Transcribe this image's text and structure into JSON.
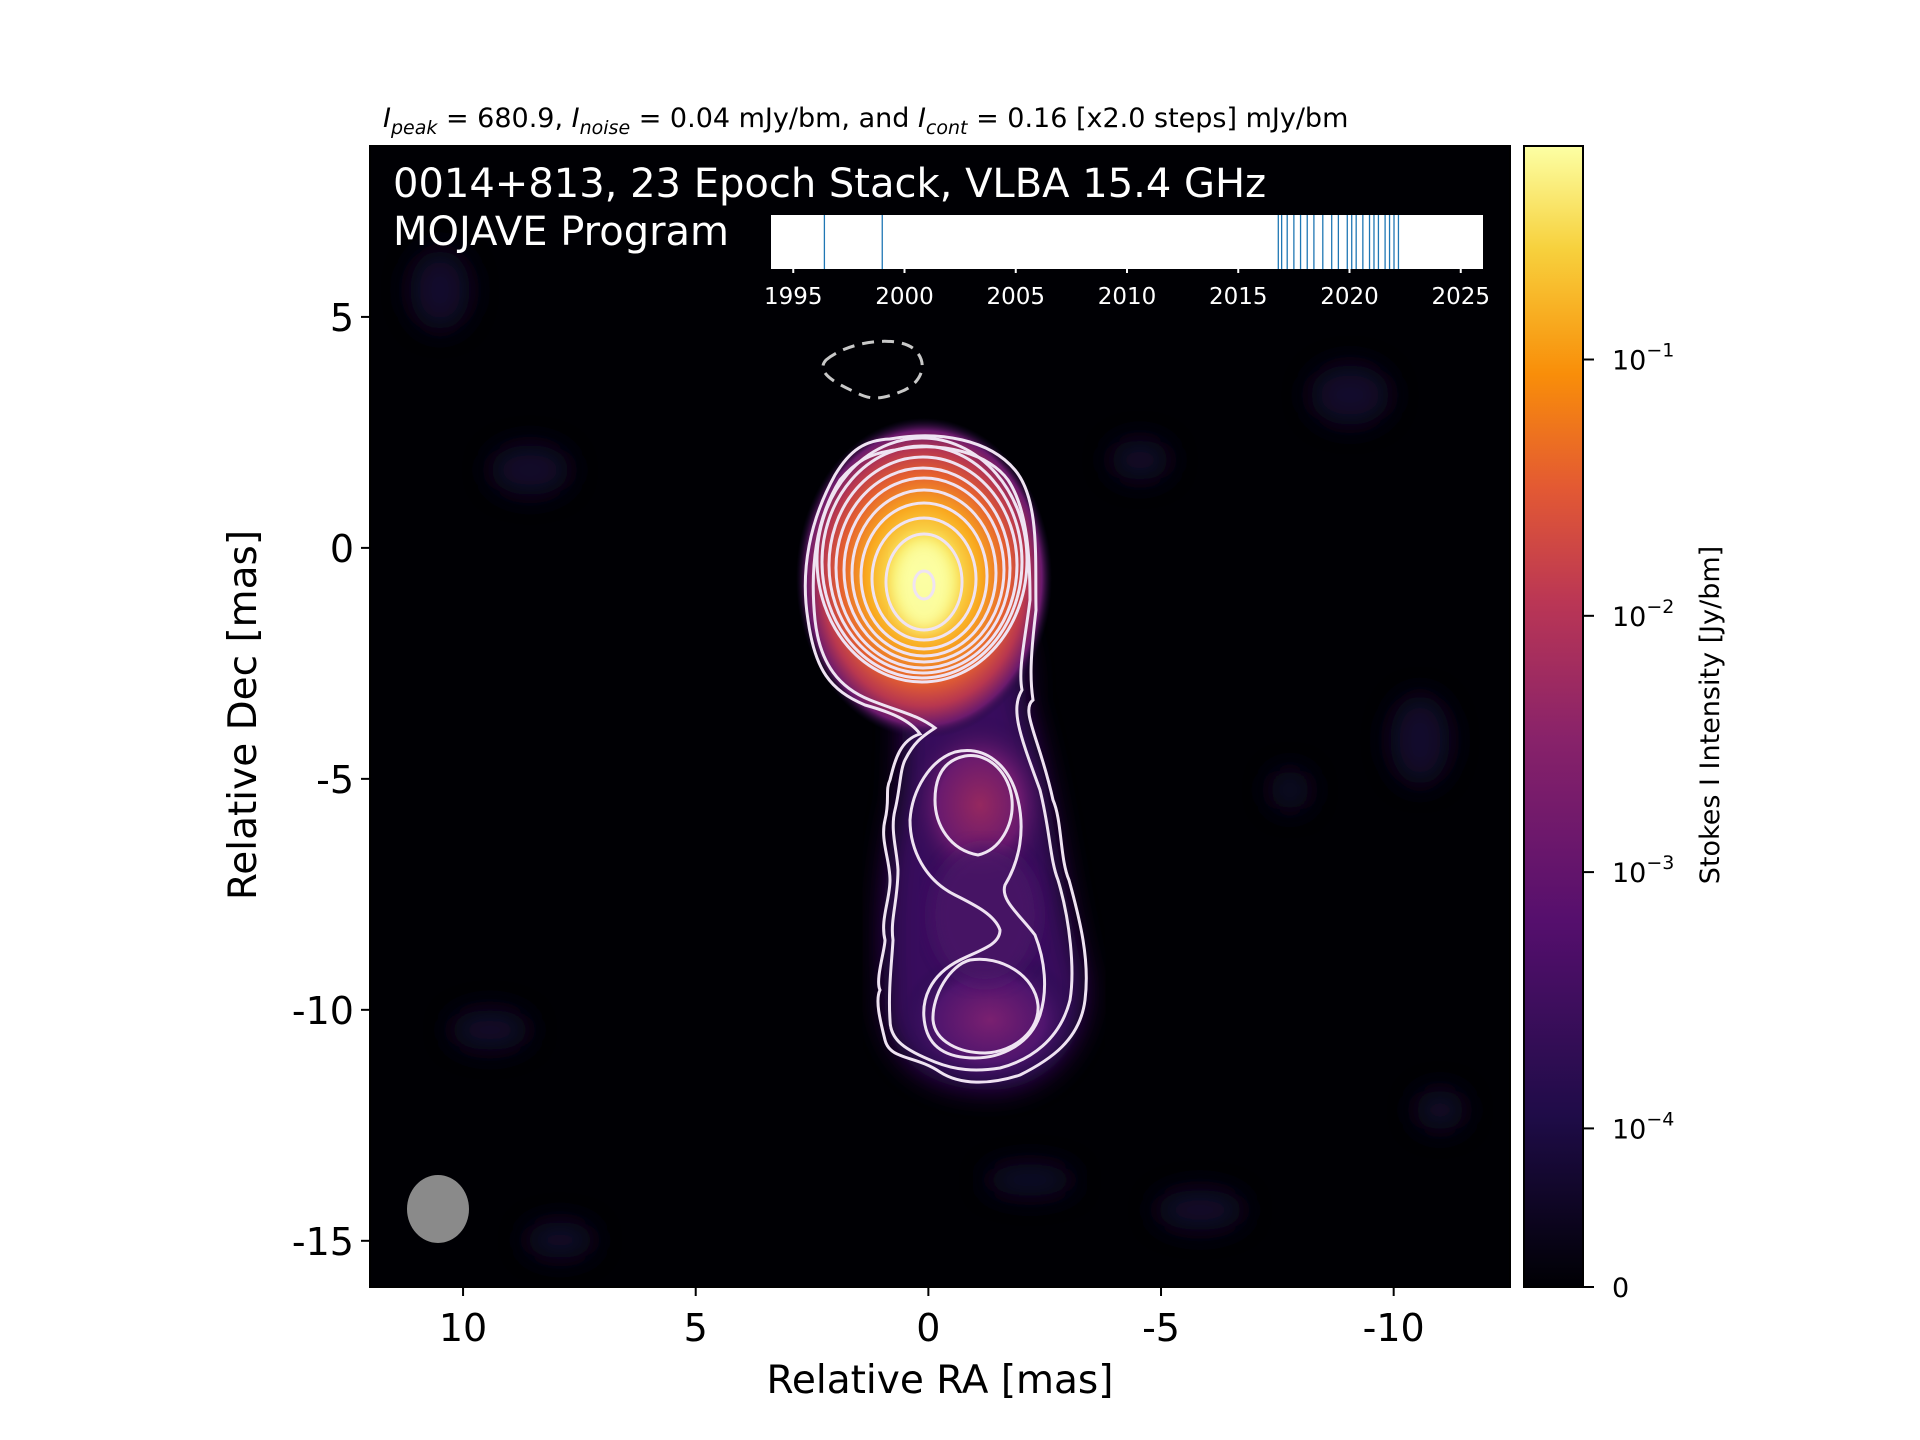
{
  "chart_data": {
    "type": "heatmap",
    "header": {
      "i_peak_sym": "I",
      "i_peak_sub": "peak",
      "i_peak_rest": " = 680.9, ",
      "i_noise_sym": "I",
      "i_noise_sub": "noise",
      "i_noise_rest": " = 0.04 mJy/bm, and ",
      "i_cont_sym": "I",
      "i_cont_sub": "cont",
      "i_cont_rest": " = 0.16 [x2.0 steps] mJy/bm"
    },
    "title_line1": "0014+813, 23 Epoch Stack, VLBA 15.4 GHz",
    "title_line2": "MOJAVE Program",
    "xlabel": "Relative RA [mas]",
    "ylabel": "Relative Dec [mas]",
    "xlim": [
      12,
      -12.5
    ],
    "ylim": [
      -16,
      8.7
    ],
    "xticks": [
      "10",
      "5",
      "0",
      "-5",
      "-10"
    ],
    "xtick_values": [
      10,
      5,
      0,
      -5,
      -10
    ],
    "yticks": [
      "5",
      "0",
      "-5",
      "-10",
      "-15"
    ],
    "ytick_values": [
      5,
      0,
      -5,
      -10,
      -15
    ],
    "colorbar": {
      "label": "Stokes I Intensity [Jy/bm]",
      "ticks": [
        {
          "base": "10",
          "exp": "−1",
          "value": 0.1
        },
        {
          "base": "10",
          "exp": "−2",
          "value": 0.01
        },
        {
          "base": "10",
          "exp": "−3",
          "value": 0.001
        },
        {
          "base": "10",
          "exp": "−4",
          "value": 0.0001
        },
        {
          "base": "0",
          "exp": "",
          "value": 0
        }
      ],
      "colors": [
        "#000004",
        "#1f0c48",
        "#550f6d",
        "#88226a",
        "#ba3655",
        "#e35933",
        "#f98e09",
        "#f7d13d",
        "#fcffa4"
      ]
    },
    "peak_jy_per_beam": 0.6809,
    "components": [
      {
        "name": "core",
        "ra": 0.0,
        "dec": -0.9,
        "flux_jy_per_beam": 0.68
      },
      {
        "name": "jet knot",
        "ra": -1.2,
        "dec": -5.6,
        "flux_jy_per_beam": 0.003
      },
      {
        "name": "jet knot",
        "ra": -1.4,
        "dec": -10.3,
        "flux_jy_per_beam": 0.0012
      }
    ],
    "beam": {
      "ra": 10.5,
      "dec": -14.3,
      "major_mas": 1.5,
      "minor_mas": 1.4
    },
    "epoch_timeline": {
      "xlim": [
        1994,
        2026
      ],
      "ticks": [
        "1995",
        "2000",
        "2005",
        "2010",
        "2015",
        "2020",
        "2025"
      ],
      "tick_values": [
        1995,
        2000,
        2005,
        2010,
        2015,
        2020,
        2025
      ],
      "epochs": [
        1996.4,
        1999.0,
        2016.8,
        2016.95,
        2017.2,
        2017.5,
        2017.8,
        2018.1,
        2018.4,
        2018.8,
        2019.2,
        2019.5,
        2019.9,
        2020.1,
        2020.3,
        2020.6,
        2020.9,
        2021.1,
        2021.3,
        2021.6,
        2021.8,
        2022.0,
        2022.2
      ],
      "line_color": "#1f77b4"
    },
    "contour_color": "#efe3f2",
    "negative_contour_color": "#c8c8c8",
    "beam_color": "#8a8a8a"
  }
}
